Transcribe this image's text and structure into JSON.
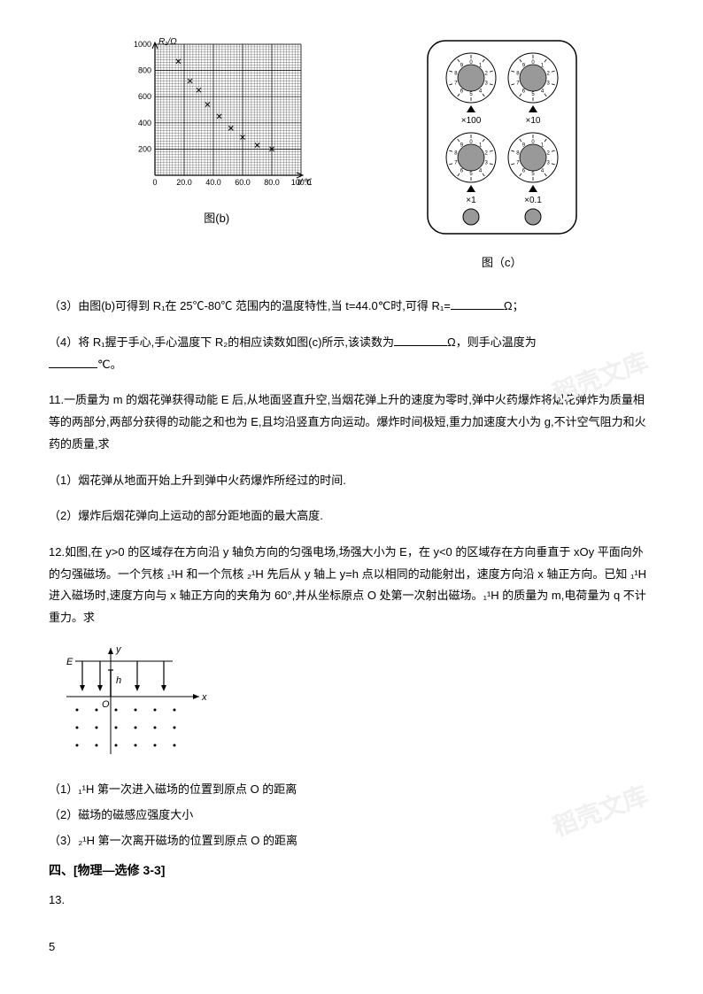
{
  "page_number": "5",
  "figures_row": {
    "figure_b": {
      "type": "scatter",
      "caption": "图(b)",
      "xlabel": "t/℃",
      "ylabel": "R₁/Ω",
      "xlim": [
        0,
        100
      ],
      "ylim": [
        0,
        1000
      ],
      "xticks": [
        0,
        20.0,
        40.0,
        60.0,
        80.0,
        100.0
      ],
      "xtick_labels": [
        "0",
        "20.0",
        "40.0",
        "60.0",
        "80.0",
        "100.0"
      ],
      "yticks": [
        0,
        200,
        400,
        600,
        800,
        1000
      ],
      "points": [
        {
          "x": 16,
          "y": 870
        },
        {
          "x": 24,
          "y": 720
        },
        {
          "x": 30,
          "y": 650
        },
        {
          "x": 36,
          "y": 540
        },
        {
          "x": 44,
          "y": 450
        },
        {
          "x": 52,
          "y": 360
        },
        {
          "x": 60,
          "y": 290
        },
        {
          "x": 70,
          "y": 230
        },
        {
          "x": 80,
          "y": 200
        }
      ],
      "marker": "x",
      "marker_size": 5,
      "axis_color": "#000000",
      "grid_color": "#000000",
      "background_color": "#ffffff",
      "minor_grid_lines": 10,
      "font_size": 9
    },
    "figure_c": {
      "type": "infographic",
      "caption": "图（c）",
      "outer_border_radius": 20,
      "outer_stroke": "#000000",
      "outer_fill": "#ffffff",
      "dials": [
        {
          "row": 0,
          "col": 0,
          "multiplier": "×100",
          "numbers": [
            "0",
            "1",
            "2",
            "3",
            "4",
            "5",
            "6",
            "7",
            "8",
            "9"
          ]
        },
        {
          "row": 0,
          "col": 1,
          "multiplier": "×10",
          "numbers": [
            "0",
            "1",
            "2",
            "3",
            "4",
            "5",
            "6",
            "7",
            "8",
            "9"
          ]
        },
        {
          "row": 1,
          "col": 0,
          "multiplier": "×1",
          "numbers": [
            "0",
            "1",
            "2",
            "3",
            "4",
            "5",
            "6",
            "7",
            "8",
            "9"
          ]
        },
        {
          "row": 1,
          "col": 1,
          "multiplier": "×0.1",
          "numbers": [
            "0",
            "1",
            "2",
            "3",
            "4",
            "5",
            "6",
            "7",
            "8",
            "9"
          ]
        }
      ],
      "dial_outer_fill": "#ffffff",
      "dial_outer_stroke": "#000000",
      "dial_inner_fill": "#999999",
      "dial_inner_stroke": "#000000",
      "triangle_fill": "#000000",
      "dial_radius": 28,
      "inner_radius": 15,
      "bottom_buttons_fill": "#999999",
      "bottom_buttons_radius": 9
    }
  },
  "q10": {
    "part3": {
      "prefix": "（3）由图(b)可得到 R₁在 25℃-80℃ 范围内的温度特性,当 t=44.0℃时,可得 R₁=",
      "suffix": "Ω；"
    },
    "part4": {
      "prefix": "（4）将 R₁握于手心,手心温度下 R₂的相应读数如图(c)所示,该读数为",
      "mid": "Ω，则手心温度为",
      "suffix": "℃。"
    }
  },
  "q11": {
    "num": "11.",
    "stem": "一质量为 m 的烟花弹获得动能 E 后,从地面竖直升空,当烟花弹上升的速度为零时,弹中火药爆炸将烟花弹炸为质量相等的两部分,两部分获得的动能之和也为 E,且均沿竖直方向运动。爆炸时间极短,重力加速度大小为 g,不计空气阻力和火药的质量,求",
    "p1": "（1）烟花弹从地面开始上升到弹中火药爆炸所经过的时间.",
    "p2": "（2）爆炸后烟花弹向上运动的部分距地面的最大高度."
  },
  "q12": {
    "num": "12.",
    "stem_a": "如图,在 y>0 的区域存在方向沿 y 轴负方向的匀强电场,场强大小为 E，在 y<0 的区域存在方向垂直于 xOy 平面向外的匀强磁场。一个氕核 ",
    "h11": "₁¹H",
    "stem_b": " 和一个氘核 ",
    "h21": "₂¹H",
    "stem_c": " 先后从 y 轴上 y=h 点以相同的动能射出，速度方向沿 x 轴正方向。已知 ",
    "stem_d": " 进入磁场时,速度方向与 x 轴正方向的夹角为 60°,并从坐标原点 O 处第一次射出磁场。",
    "stem_e": " 的质量为 m,电荷量为 q 不计重力。求",
    "p1_a": "（1）",
    "p1_b": " 第一次进入磁场的位置到原点 O 的距离",
    "p2": "（2）磁场的磁感应强度大小",
    "p3_a": "（3）",
    "p3_b": " 第一次离开磁场的位置到原点 O 的距离",
    "diagram": {
      "type": "diagram",
      "E_label": "E",
      "x_label": "x",
      "y_label": "y",
      "O_label": "O",
      "h_label": "h",
      "arrow_count": 4,
      "dot_rows": 3,
      "dot_cols": 6,
      "axis_color": "#000000",
      "dot_radius": 1.5
    }
  },
  "section4": {
    "title": "四、[物理―选修 3-3]",
    "q13_num": "13."
  },
  "watermarks": {
    "text1": "稻壳文库",
    "text2": "稻壳文库",
    "color": "#f4f4f4"
  }
}
